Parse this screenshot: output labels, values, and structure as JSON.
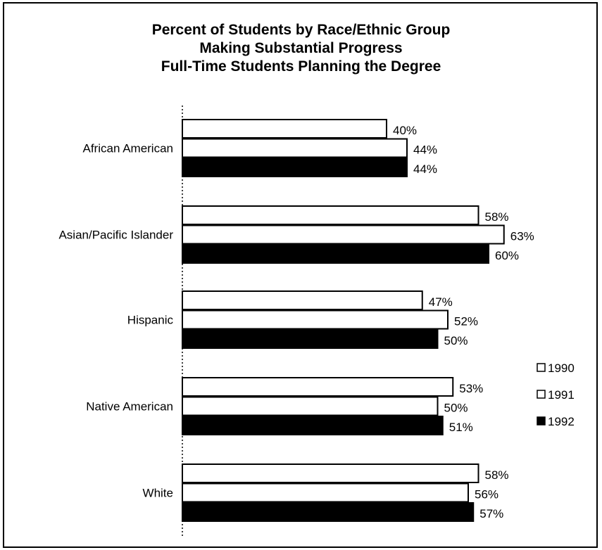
{
  "chart_data": {
    "type": "bar",
    "orientation": "horizontal",
    "title_lines": [
      "Percent of Students by Race/Ethnic Group",
      "Making Substantial Progress",
      "Full-Time Students Planning the Degree"
    ],
    "categories": [
      "African American",
      "Asian/Pacific Islander",
      "Hispanic",
      "Native American",
      "White"
    ],
    "series": [
      {
        "name": "1990",
        "values": [
          40,
          58,
          47,
          53,
          58
        ],
        "labels": [
          "40%",
          "58%",
          "47%",
          "53%",
          "58%"
        ],
        "fill": "#ffffff"
      },
      {
        "name": "1991",
        "values": [
          44,
          63,
          52,
          50,
          56
        ],
        "labels": [
          "44%",
          "63%",
          "52%",
          "50%",
          "56%"
        ],
        "fill": "#ffffff"
      },
      {
        "name": "1992",
        "values": [
          44,
          60,
          50,
          51,
          57
        ],
        "labels": [
          "44%",
          "60%",
          "50%",
          "51%",
          "57%"
        ],
        "fill": "#000000"
      }
    ],
    "xlim": [
      0,
      70
    ],
    "grid": false,
    "legend": "right"
  }
}
